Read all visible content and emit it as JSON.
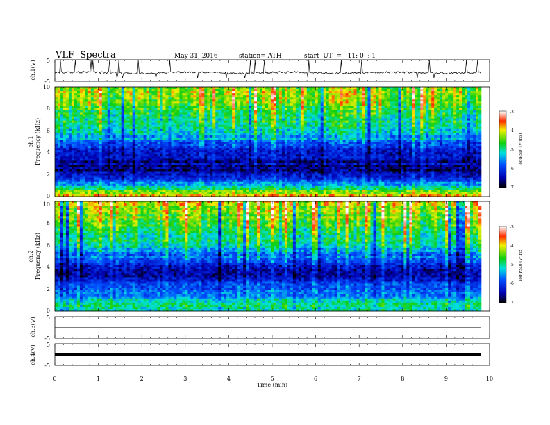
{
  "header": {
    "title": "VLF  Spectra",
    "date": "May 31, 2016",
    "station": "station= ATH",
    "start": "start  UT  =   11: 0  : 1"
  },
  "chart_data": {
    "type": "heatmap",
    "x_label": "Time  (min)",
    "x_range": [
      0,
      10
    ],
    "x_ticks": [
      "0",
      "1",
      "2",
      "3",
      "4",
      "5",
      "6",
      "7",
      "8",
      "9",
      "10"
    ],
    "panels": [
      {
        "id": "ch1v",
        "type": "line",
        "ylabel": "ch.1(V)",
        "ylim": [
          -5,
          5
        ],
        "yticks": [
          "5",
          "-5"
        ],
        "description_level": "noisy waveform around -1 V with spikes"
      },
      {
        "id": "ch1spec",
        "type": "heatmap",
        "ylabel": [
          "ch.1",
          "Frequency  (kHz)"
        ],
        "ylim": [
          0,
          10
        ],
        "yticks": [
          "0",
          "2",
          "4",
          "6",
          "8",
          "10"
        ],
        "colorbar": {
          "label": "log(PSD) (V²/Hz)",
          "range": [
            -7,
            -3
          ],
          "ticks": [
            "-3",
            "-4",
            "-5",
            "-6",
            "-7"
          ]
        },
        "profile_log_psd": [
          {
            "freq_khz": 0.2,
            "value": -4.0
          },
          {
            "freq_khz": 1.0,
            "value": -5.5
          },
          {
            "freq_khz": 2.5,
            "value": -6.6
          },
          {
            "freq_khz": 4.0,
            "value": -6.3
          },
          {
            "freq_khz": 5.5,
            "value": -5.4
          },
          {
            "freq_khz": 7.5,
            "value": -4.8
          },
          {
            "freq_khz": 9.5,
            "value": -4.3
          }
        ]
      },
      {
        "id": "ch2spec",
        "type": "heatmap",
        "ylabel": [
          "ch.2",
          "Frequency  (kHz)"
        ],
        "ylim": [
          0,
          10
        ],
        "yticks": [
          "0",
          "2",
          "4",
          "6",
          "8",
          "10"
        ],
        "colorbar": {
          "label": "log(PSD) (V²/Hz)",
          "range": [
            -7,
            -3
          ],
          "ticks": [
            "-3",
            "-4",
            "-5",
            "-6",
            "-7"
          ]
        },
        "profile_log_psd": [
          {
            "freq_khz": 0.5,
            "value": -5.0
          },
          {
            "freq_khz": 1.5,
            "value": -5.6
          },
          {
            "freq_khz": 3.5,
            "value": -6.5
          },
          {
            "freq_khz": 4.5,
            "value": -6.0
          },
          {
            "freq_khz": 6.0,
            "value": -5.2
          },
          {
            "freq_khz": 8.0,
            "value": -4.6
          },
          {
            "freq_khz": 9.5,
            "value": -4.2
          }
        ]
      },
      {
        "id": "ch3v",
        "type": "line",
        "ylabel": "ch.3(V)",
        "ylim": [
          -5,
          5
        ],
        "yticks": [
          "5",
          "-5"
        ],
        "level": 0
      },
      {
        "id": "ch4v",
        "type": "line",
        "ylabel": "ch.4(V)",
        "ylim": [
          -5,
          5
        ],
        "yticks": [
          "5",
          "0",
          "-5"
        ],
        "level": 0
      }
    ]
  }
}
